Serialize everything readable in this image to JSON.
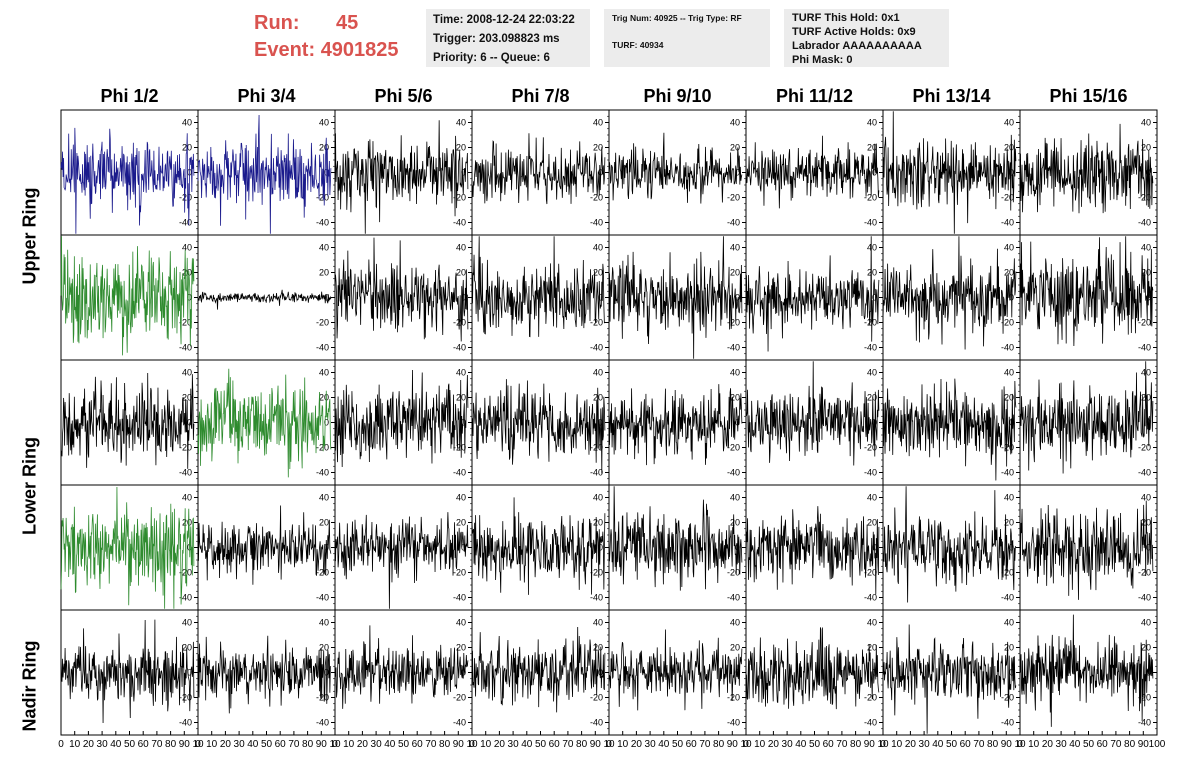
{
  "header": {
    "run_label": "Run:",
    "run_value": "45",
    "event_label": "Event:",
    "event_value": "4901825",
    "time": "Time: 2008-12-24 22:03:22",
    "trigger": "Trigger: 203.098823 ms",
    "priority": "Priority: 6 -- Queue: 6",
    "trig_num": "Trig Num: 40925 -- Trig Type: RF",
    "turf": "TURF: 40934",
    "turf_this_hold": "TURF This Hold: 0x1",
    "turf_active_holds": "TURF Active Holds: 0x9",
    "labrador": "Labrador AAAAAAAAAA",
    "phi_mask": "Phi Mask: 0"
  },
  "colors": {
    "blue": "#1a1a8c",
    "green": "#2e8b2e",
    "black": "#000000",
    "accent_red": "#d9534f"
  },
  "chart_data": {
    "type": "line",
    "title": "",
    "columns": [
      "Phi 1/2",
      "Phi 3/4",
      "Phi 5/6",
      "Phi 7/8",
      "Phi 9/10",
      "Phi 11/12",
      "Phi 13/14",
      "Phi 15/16"
    ],
    "ring_labels": [
      "Upper Ring",
      "Lower Ring",
      "Nadir Ring"
    ],
    "ylim": [
      -50,
      50
    ],
    "yticks": [
      "40",
      "20",
      "0",
      "-20",
      "-40"
    ],
    "xlim": [
      0,
      100
    ],
    "xticks_first": [
      "0",
      "10",
      "20",
      "30",
      "40",
      "50",
      "60",
      "70",
      "80",
      "90",
      "10"
    ],
    "xticks_last": [
      "0",
      "10",
      "20",
      "30",
      "40",
      "50",
      "60",
      "70",
      "80",
      "90",
      "100"
    ],
    "samples_per_trace": 260,
    "x_end": 97,
    "panels": [
      [
        {
          "color": "blue",
          "amp": 14,
          "seed": 11
        },
        {
          "color": "blue",
          "amp": 14,
          "seed": 12
        },
        {
          "color": "black",
          "amp": 13,
          "seed": 13
        },
        {
          "color": "black",
          "amp": 11,
          "seed": 14
        },
        {
          "color": "black",
          "amp": 10,
          "seed": 15
        },
        {
          "color": "black",
          "amp": 10,
          "seed": 16
        },
        {
          "color": "black",
          "amp": 13,
          "seed": 17
        },
        {
          "color": "black",
          "amp": 15,
          "seed": 18
        }
      ],
      [
        {
          "color": "green",
          "amp": 18,
          "seed": 21
        },
        {
          "color": "black",
          "amp": 2,
          "seed": 22
        },
        {
          "color": "black",
          "amp": 14,
          "seed": 23
        },
        {
          "color": "black",
          "amp": 14,
          "seed": 24
        },
        {
          "color": "black",
          "amp": 13,
          "seed": 25
        },
        {
          "color": "black",
          "amp": 12,
          "seed": 26
        },
        {
          "color": "black",
          "amp": 13,
          "seed": 27
        },
        {
          "color": "black",
          "amp": 17,
          "seed": 28
        }
      ],
      [
        {
          "color": "black",
          "amp": 14,
          "seed": 31
        },
        {
          "color": "green",
          "amp": 16,
          "seed": 32
        },
        {
          "color": "black",
          "amp": 15,
          "seed": 33
        },
        {
          "color": "black",
          "amp": 13,
          "seed": 34
        },
        {
          "color": "black",
          "amp": 13,
          "seed": 35
        },
        {
          "color": "black",
          "amp": 14,
          "seed": 36
        },
        {
          "color": "black",
          "amp": 15,
          "seed": 37
        },
        {
          "color": "black",
          "amp": 14,
          "seed": 38
        }
      ],
      [
        {
          "color": "green",
          "amp": 17,
          "seed": 41
        },
        {
          "color": "black",
          "amp": 11,
          "seed": 42
        },
        {
          "color": "black",
          "amp": 12,
          "seed": 43
        },
        {
          "color": "black",
          "amp": 13,
          "seed": 44
        },
        {
          "color": "black",
          "amp": 14,
          "seed": 45
        },
        {
          "color": "black",
          "amp": 13,
          "seed": 46
        },
        {
          "color": "black",
          "amp": 13,
          "seed": 47
        },
        {
          "color": "black",
          "amp": 15,
          "seed": 48
        }
      ],
      [
        {
          "color": "black",
          "amp": 12,
          "seed": 51
        },
        {
          "color": "black",
          "amp": 11,
          "seed": 52
        },
        {
          "color": "black",
          "amp": 11,
          "seed": 53
        },
        {
          "color": "black",
          "amp": 12,
          "seed": 54
        },
        {
          "color": "black",
          "amp": 11,
          "seed": 55
        },
        {
          "color": "black",
          "amp": 13,
          "seed": 56
        },
        {
          "color": "black",
          "amp": 13,
          "seed": 57
        },
        {
          "color": "black",
          "amp": 13,
          "seed": 58
        }
      ]
    ]
  }
}
